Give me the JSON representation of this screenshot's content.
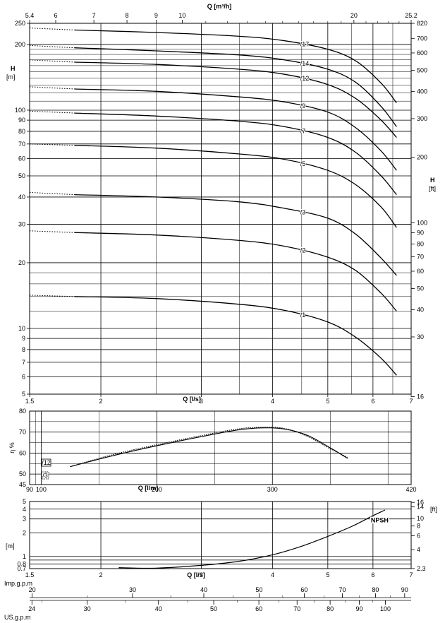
{
  "chart_data": [
    {
      "type": "line",
      "name": "head",
      "xlabel": "Q [l/s]",
      "top_axis_label": "Q [m³/h]",
      "ylabel_left": "H",
      "ylabel_left_unit": "[m]",
      "ylabel_right": "H",
      "ylabel_right_unit": "[ft]",
      "x_scale": "log",
      "y_scale": "log",
      "xlim": [
        1.5,
        7
      ],
      "ylim": [
        5,
        250
      ],
      "x_ticks": [
        "1.5",
        "2",
        "3",
        "4",
        "5",
        "6",
        "7"
      ],
      "top_ticks": [
        "5.4",
        "6",
        "7",
        "8",
        "9",
        "10",
        "20",
        "25.2"
      ],
      "y_ticks_left": [
        "5",
        "6",
        "7",
        "8",
        "9",
        "10",
        "20",
        "30",
        "40",
        "50",
        "60",
        "70",
        "80",
        "90",
        "100",
        "200",
        "250"
      ],
      "y_ticks_right": [
        "16",
        "30",
        "40",
        "50",
        "60",
        "70",
        "80",
        "90",
        "100",
        "200",
        "300",
        "400",
        "500",
        "600",
        "700",
        "820"
      ],
      "series": [
        {
          "name": "/17",
          "x": [
            1.5,
            1.8,
            2.5,
            3.5,
            4.2,
            5.0,
            5.6,
            6.2,
            6.6
          ],
          "y": [
            238,
            233,
            227,
            218,
            208,
            190,
            168,
            133,
            108
          ]
        },
        {
          "name": "/14",
          "x": [
            1.5,
            1.8,
            2.5,
            3.5,
            4.2,
            5.0,
            5.6,
            6.2,
            6.6
          ],
          "y": [
            198,
            193,
            187,
            179,
            170,
            154,
            134,
            104,
            84
          ]
        },
        {
          "name": "/12",
          "x": [
            1.5,
            1.8,
            2.5,
            3.5,
            4.2,
            5.0,
            5.6,
            6.2,
            6.6
          ],
          "y": [
            170,
            166,
            162,
            154,
            146,
            131,
            113,
            90,
            75
          ]
        },
        {
          "name": "/9",
          "x": [
            1.5,
            1.8,
            2.5,
            3.5,
            4.2,
            5.0,
            5.6,
            6.2,
            6.6
          ],
          "y": [
            128,
            125,
            122,
            115,
            109,
            98,
            83,
            65,
            53
          ]
        },
        {
          "name": "/7",
          "x": [
            1.5,
            1.8,
            2.5,
            3.5,
            4.2,
            5.0,
            5.6,
            6.2,
            6.6
          ],
          "y": [
            99,
            97,
            94,
            89,
            84,
            75,
            64,
            50,
            41
          ]
        },
        {
          "name": "/5",
          "x": [
            1.5,
            1.8,
            2.5,
            3.5,
            4.2,
            5.0,
            5.6,
            6.2,
            6.6
          ],
          "y": [
            70,
            69,
            67,
            63,
            59.5,
            53,
            45.5,
            36,
            29
          ]
        },
        {
          "name": "/3",
          "x": [
            1.5,
            1.8,
            2.5,
            3.5,
            4.2,
            5.0,
            5.6,
            6.2,
            6.6
          ],
          "y": [
            42,
            41,
            40,
            38,
            35.5,
            32,
            27,
            21,
            17.5
          ]
        },
        {
          "name": "/2",
          "x": [
            1.5,
            1.8,
            2.5,
            3.5,
            4.2,
            5.0,
            5.6,
            6.2,
            6.6
          ],
          "y": [
            28,
            27.5,
            26.8,
            25.3,
            23.8,
            21.2,
            18.4,
            14.5,
            12
          ]
        },
        {
          "name": "/1",
          "x": [
            1.5,
            1.8,
            2.5,
            3.5,
            4.2,
            5.0,
            5.6,
            6.2,
            6.6
          ],
          "y": [
            14.2,
            14,
            13.7,
            12.9,
            12.1,
            10.7,
            9.1,
            7.3,
            6.1
          ]
        }
      ]
    },
    {
      "type": "line",
      "name": "efficiency",
      "xlabel": "Q [l/m]",
      "ylabel": "η %",
      "xlim": [
        90,
        420
      ],
      "ylim": [
        45,
        80
      ],
      "x_ticks": [
        "90",
        "100",
        "200",
        "300",
        "420"
      ],
      "y_ticks": [
        "45",
        "50",
        "60",
        "70",
        "80"
      ],
      "legend": [
        "/12",
        "/3"
      ],
      "series": [
        {
          "name": "/12",
          "x": [
            125,
            160,
            200,
            240,
            270,
            290,
            310,
            330,
            350,
            365
          ],
          "y": [
            53.5,
            58.5,
            63.5,
            68,
            71,
            72,
            71.5,
            68.5,
            62.5,
            57.5
          ]
        },
        {
          "name": "/3",
          "x": [
            125,
            160,
            200,
            240,
            270,
            290,
            310,
            330,
            350,
            365
          ],
          "y": [
            53.5,
            59,
            64,
            68.5,
            71.5,
            72.3,
            71.8,
            68,
            62,
            58
          ]
        }
      ]
    },
    {
      "type": "line",
      "name": "npsh",
      "xlabel": "Q [l/s]",
      "ylabel_left_unit": "[m]",
      "ylabel_right_unit": "[ft]",
      "y_scale": "log",
      "xlim": [
        1.5,
        7
      ],
      "ylim": [
        0.7,
        5
      ],
      "x_ticks": [
        "1.5",
        "2",
        "3",
        "4",
        "5",
        "6",
        "7"
      ],
      "y_ticks_left": [
        "0.7",
        "0.8",
        "1",
        "2",
        "3",
        "4",
        "5"
      ],
      "y_ticks_right": [
        "2.3",
        "4",
        "6",
        "8",
        "10",
        "14",
        "16"
      ],
      "series": [
        {
          "name": "NPSH",
          "x": [
            2.15,
            2.5,
            3.0,
            3.5,
            4.0,
            4.5,
            5.0,
            5.5,
            6.0,
            6.3
          ],
          "y": [
            0.72,
            0.71,
            0.77,
            0.87,
            1.05,
            1.35,
            1.8,
            2.4,
            3.3,
            3.9
          ]
        }
      ]
    },
    {
      "type": "table",
      "name": "flow-scales",
      "imp_label": "Imp.g.p.m",
      "us_label": "US.g.p.m",
      "imp_ticks": [
        "20",
        "30",
        "40",
        "50",
        "60",
        "70",
        "80",
        "90"
      ],
      "us_ticks": [
        "24",
        "30",
        "40",
        "50",
        "60",
        "70",
        "80",
        "90",
        "100"
      ]
    }
  ]
}
